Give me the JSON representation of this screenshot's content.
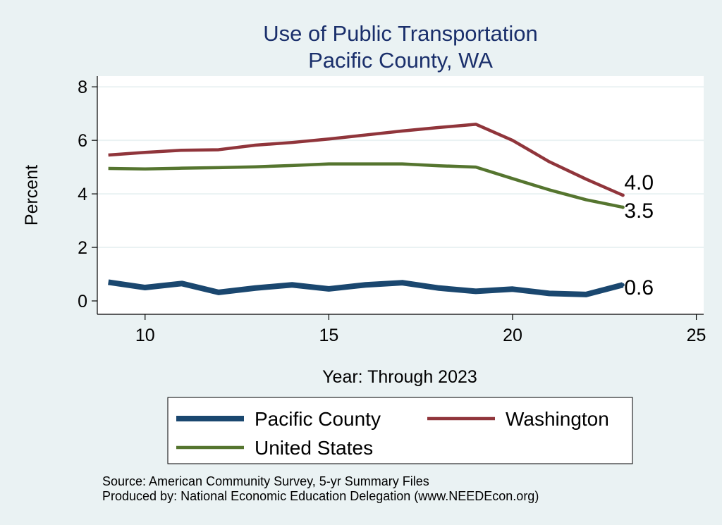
{
  "chart_data": {
    "type": "line",
    "title": "Use of Public Transportation",
    "subtitle": "Pacific County, WA",
    "xlabel": "Year: Through 2023",
    "ylabel": "Percent",
    "xlim": [
      8.7,
      25.2
    ],
    "ylim": [
      -0.5,
      8.4
    ],
    "x_ticks": [
      10,
      15,
      20,
      25
    ],
    "y_ticks": [
      0,
      2,
      4,
      6,
      8
    ],
    "grid": "horizontal",
    "legend_position": "bottom",
    "x": [
      9,
      10,
      11,
      12,
      13,
      14,
      15,
      16,
      17,
      18,
      19,
      20,
      21,
      22,
      23
    ],
    "series": [
      {
        "name": "Pacific County",
        "color": "#1a476f",
        "end_label": "0.6",
        "values": [
          0.7,
          0.5,
          0.65,
          0.32,
          0.48,
          0.6,
          0.45,
          0.6,
          0.68,
          0.48,
          0.36,
          0.44,
          0.28,
          0.24,
          0.6
        ]
      },
      {
        "name": "Washington",
        "color": "#90353b",
        "end_label": "4.0",
        "values": [
          5.45,
          5.55,
          5.63,
          5.65,
          5.82,
          5.92,
          6.05,
          6.2,
          6.35,
          6.48,
          6.6,
          6.0,
          5.2,
          4.55,
          3.95
        ]
      },
      {
        "name": "United States",
        "color": "#55752f",
        "end_label": "3.5",
        "values": [
          4.95,
          4.93,
          4.96,
          4.98,
          5.01,
          5.06,
          5.12,
          5.12,
          5.12,
          5.05,
          5.0,
          4.57,
          4.15,
          3.78,
          3.5
        ]
      }
    ]
  },
  "footer": {
    "source": "Source: American Community Survey, 5-yr Summary Files",
    "produced_by": "Produced by: National Economic Education Delegation (www.NEEDEcon.org)"
  }
}
